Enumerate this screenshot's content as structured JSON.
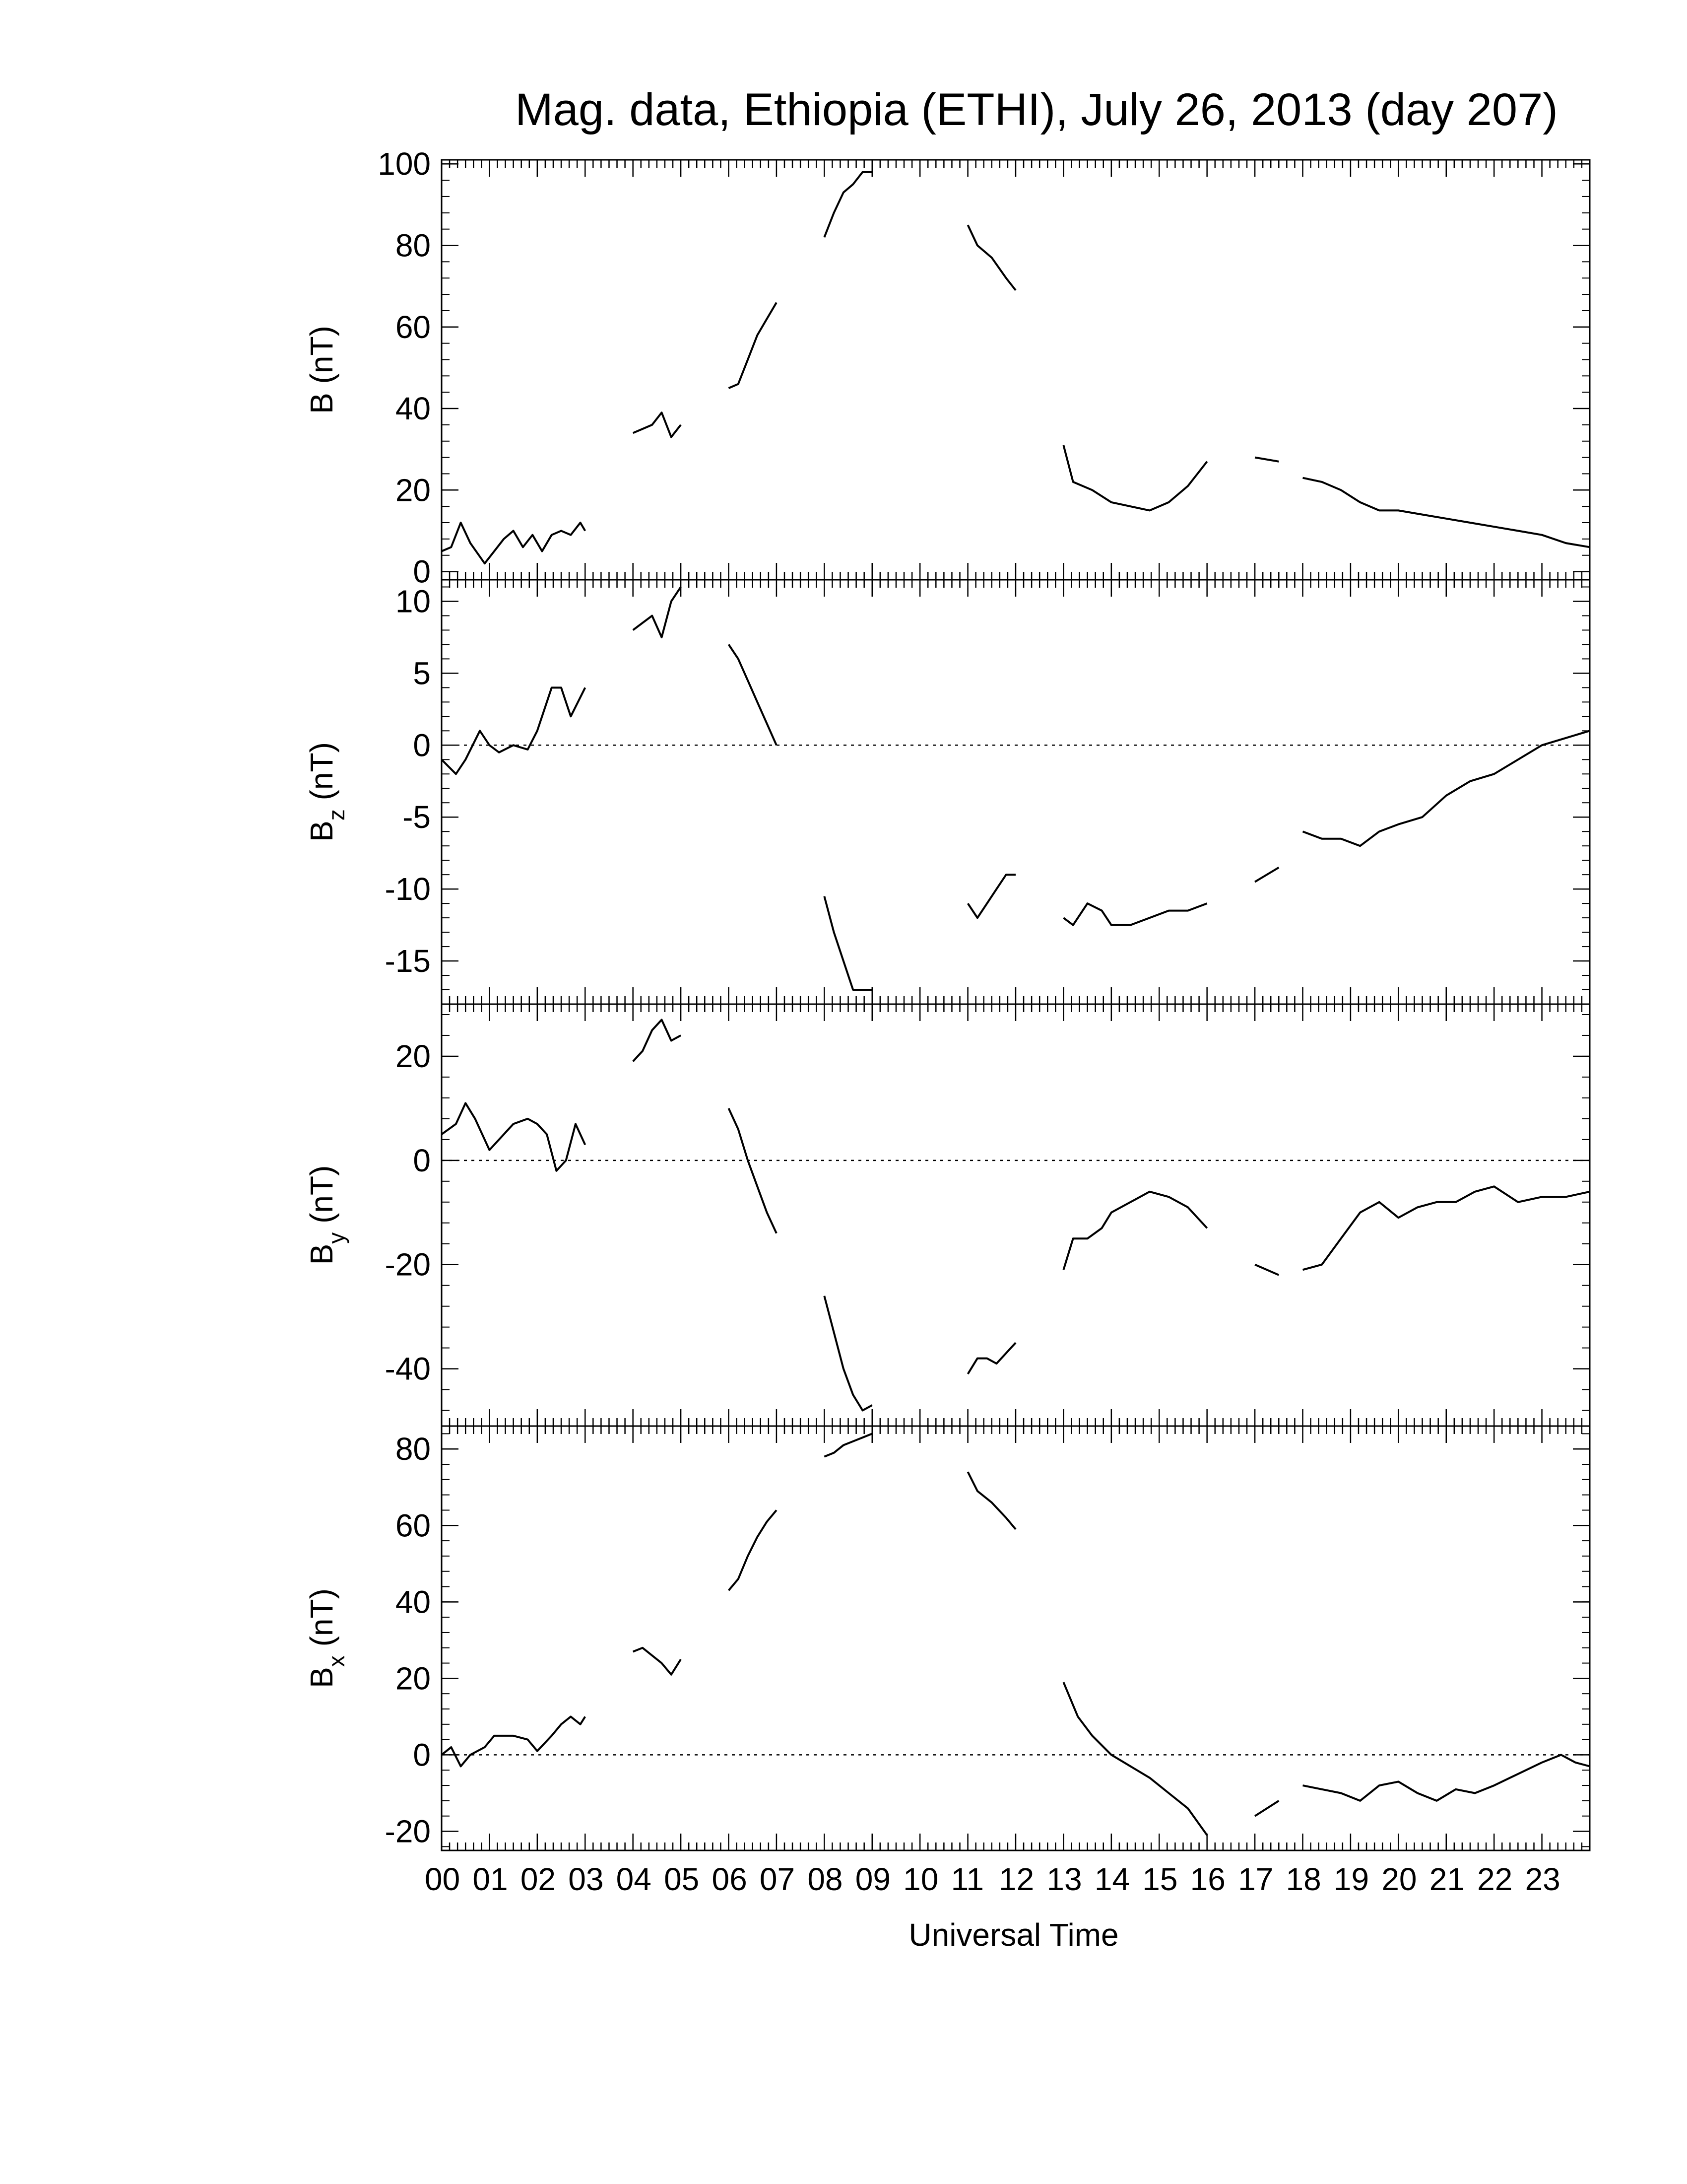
{
  "chart_data": {
    "type": "line",
    "title": "Mag. data, Ethiopia (ETHI), July 26, 2013 (day 207)",
    "xlabel": "Universal Time",
    "xlim": [
      0,
      24
    ],
    "xtick_labels": [
      "00",
      "01",
      "02",
      "03",
      "04",
      "05",
      "06",
      "07",
      "08",
      "09",
      "10",
      "11",
      "12",
      "13",
      "14",
      "15",
      "16",
      "17",
      "18",
      "19",
      "20",
      "21",
      "22",
      "23"
    ],
    "panels": [
      {
        "name": "B",
        "ylabel_main": "B",
        "ylabel_sub": "",
        "ylabel_unit": "(nT)",
        "ylim": [
          -2,
          101
        ],
        "yticks": [
          0,
          20,
          40,
          60,
          80,
          100
        ],
        "zero_line": false,
        "segments": [
          [
            [
              0,
              5
            ],
            [
              0.2,
              6
            ],
            [
              0.4,
              12
            ],
            [
              0.6,
              7
            ],
            [
              0.9,
              2
            ],
            [
              1.1,
              5
            ],
            [
              1.3,
              8
            ],
            [
              1.5,
              10
            ],
            [
              1.7,
              6
            ],
            [
              1.9,
              9
            ],
            [
              2.1,
              5
            ],
            [
              2.3,
              9
            ],
            [
              2.5,
              10
            ],
            [
              2.7,
              9
            ],
            [
              2.9,
              12
            ],
            [
              3.0,
              10
            ]
          ],
          [
            [
              4.0,
              34
            ],
            [
              4.2,
              35
            ],
            [
              4.4,
              36
            ],
            [
              4.6,
              39
            ],
            [
              4.8,
              33
            ],
            [
              5.0,
              36
            ]
          ],
          [
            [
              6.0,
              45
            ],
            [
              6.2,
              46
            ],
            [
              6.4,
              52
            ],
            [
              6.6,
              58
            ],
            [
              6.8,
              62
            ],
            [
              7.0,
              66
            ]
          ],
          [
            [
              8.0,
              82
            ],
            [
              8.2,
              88
            ],
            [
              8.4,
              93
            ],
            [
              8.6,
              95
            ],
            [
              8.8,
              98
            ],
            [
              9.0,
              98
            ]
          ],
          [
            [
              11.0,
              85
            ],
            [
              11.2,
              80
            ],
            [
              11.5,
              77
            ],
            [
              11.8,
              72
            ],
            [
              12.0,
              69
            ]
          ],
          [
            [
              13.0,
              31
            ],
            [
              13.2,
              22
            ],
            [
              13.6,
              20
            ],
            [
              14.0,
              17
            ],
            [
              14.4,
              16
            ],
            [
              14.8,
              15
            ],
            [
              15.2,
              17
            ],
            [
              15.6,
              21
            ],
            [
              16.0,
              27
            ]
          ],
          [
            [
              17.0,
              28
            ],
            [
              17.5,
              27
            ]
          ],
          [
            [
              18.0,
              23
            ],
            [
              18.4,
              22
            ],
            [
              18.8,
              20
            ],
            [
              19.2,
              17
            ],
            [
              19.6,
              15
            ],
            [
              20.0,
              15
            ],
            [
              20.5,
              14
            ],
            [
              21.0,
              13
            ],
            [
              21.5,
              12
            ],
            [
              22.0,
              11
            ],
            [
              22.5,
              10
            ],
            [
              23.0,
              9
            ],
            [
              23.5,
              7
            ],
            [
              24.0,
              6
            ]
          ]
        ]
      },
      {
        "name": "Bz",
        "ylabel_main": "B",
        "ylabel_sub": "z",
        "ylabel_unit": "(nT)",
        "ylim": [
          -18,
          11.5
        ],
        "yticks": [
          10,
          5,
          0,
          -5,
          -10,
          -15
        ],
        "zero_line": true,
        "segments": [
          [
            [
              0,
              -1
            ],
            [
              0.3,
              -2
            ],
            [
              0.5,
              -1
            ],
            [
              0.8,
              1
            ],
            [
              1.0,
              0
            ],
            [
              1.2,
              -0.5
            ],
            [
              1.5,
              0
            ],
            [
              1.8,
              -0.3
            ],
            [
              2.0,
              1
            ],
            [
              2.3,
              4
            ],
            [
              2.5,
              4
            ],
            [
              2.7,
              2
            ],
            [
              2.85,
              3
            ],
            [
              3.0,
              4
            ]
          ],
          [
            [
              4.0,
              8
            ],
            [
              4.2,
              8.5
            ],
            [
              4.4,
              9
            ],
            [
              4.6,
              7.5
            ],
            [
              4.8,
              10
            ],
            [
              5.0,
              11
            ]
          ],
          [
            [
              6.0,
              7
            ],
            [
              6.2,
              6
            ],
            [
              6.4,
              4.5
            ],
            [
              6.6,
              3
            ],
            [
              6.8,
              1.5
            ],
            [
              7.0,
              0
            ]
          ],
          [
            [
              8.0,
              -10.5
            ],
            [
              8.2,
              -13
            ],
            [
              8.4,
              -15
            ],
            [
              8.6,
              -17
            ],
            [
              8.8,
              -17
            ],
            [
              9.0,
              -17
            ]
          ],
          [
            [
              11.0,
              -11
            ],
            [
              11.2,
              -12
            ],
            [
              11.4,
              -11
            ],
            [
              11.6,
              -10
            ],
            [
              11.8,
              -9
            ],
            [
              12.0,
              -9
            ]
          ],
          [
            [
              13.0,
              -12
            ],
            [
              13.2,
              -12.5
            ],
            [
              13.5,
              -11
            ],
            [
              13.8,
              -11.5
            ],
            [
              14.0,
              -12.5
            ],
            [
              14.4,
              -12.5
            ],
            [
              14.8,
              -12
            ],
            [
              15.2,
              -11.5
            ],
            [
              15.6,
              -11.5
            ],
            [
              16.0,
              -11
            ]
          ],
          [
            [
              17.0,
              -9.5
            ],
            [
              17.5,
              -8.5
            ]
          ],
          [
            [
              18.0,
              -6
            ],
            [
              18.4,
              -6.5
            ],
            [
              18.8,
              -6.5
            ],
            [
              19.2,
              -7
            ],
            [
              19.6,
              -6
            ],
            [
              20.0,
              -5.5
            ],
            [
              20.5,
              -5
            ],
            [
              21.0,
              -3.5
            ],
            [
              21.5,
              -2.5
            ],
            [
              22.0,
              -2
            ],
            [
              22.5,
              -1
            ],
            [
              23.0,
              0
            ],
            [
              23.5,
              0.5
            ],
            [
              24.0,
              1
            ]
          ]
        ]
      },
      {
        "name": "By",
        "ylabel_main": "B",
        "ylabel_sub": "y",
        "ylabel_unit": "(nT)",
        "ylim": [
          -51,
          30
        ],
        "yticks": [
          20,
          0,
          -20,
          -40
        ],
        "zero_line": true,
        "segments": [
          [
            [
              0,
              5
            ],
            [
              0.3,
              7
            ],
            [
              0.5,
              11
            ],
            [
              0.7,
              8
            ],
            [
              1.0,
              2
            ],
            [
              1.2,
              4
            ],
            [
              1.5,
              7
            ],
            [
              1.8,
              8
            ],
            [
              2.0,
              7
            ],
            [
              2.2,
              5
            ],
            [
              2.4,
              -2
            ],
            [
              2.6,
              0
            ],
            [
              2.8,
              7
            ],
            [
              3.0,
              3
            ]
          ],
          [
            [
              4.0,
              19
            ],
            [
              4.2,
              21
            ],
            [
              4.4,
              25
            ],
            [
              4.6,
              27
            ],
            [
              4.8,
              23
            ],
            [
              5.0,
              24
            ]
          ],
          [
            [
              6.0,
              10
            ],
            [
              6.2,
              6
            ],
            [
              6.4,
              0
            ],
            [
              6.6,
              -5
            ],
            [
              6.8,
              -10
            ],
            [
              7.0,
              -14
            ]
          ],
          [
            [
              8.0,
              -26
            ],
            [
              8.2,
              -33
            ],
            [
              8.4,
              -40
            ],
            [
              8.6,
              -45
            ],
            [
              8.8,
              -48
            ],
            [
              9.0,
              -47
            ]
          ],
          [
            [
              11.0,
              -41
            ],
            [
              11.2,
              -38
            ],
            [
              11.4,
              -38
            ],
            [
              11.6,
              -39
            ],
            [
              11.8,
              -37
            ],
            [
              12.0,
              -35
            ]
          ],
          [
            [
              13.0,
              -21
            ],
            [
              13.2,
              -15
            ],
            [
              13.5,
              -15
            ],
            [
              13.8,
              -13
            ],
            [
              14.0,
              -10
            ],
            [
              14.4,
              -8
            ],
            [
              14.8,
              -6
            ],
            [
              15.2,
              -7
            ],
            [
              15.6,
              -9
            ],
            [
              16.0,
              -13
            ]
          ],
          [
            [
              17.0,
              -20
            ],
            [
              17.5,
              -22
            ]
          ],
          [
            [
              18.0,
              -21
            ],
            [
              18.4,
              -20
            ],
            [
              18.8,
              -15
            ],
            [
              19.2,
              -10
            ],
            [
              19.6,
              -8
            ],
            [
              20.0,
              -11
            ],
            [
              20.4,
              -9
            ],
            [
              20.8,
              -8
            ],
            [
              21.2,
              -8
            ],
            [
              21.6,
              -6
            ],
            [
              22.0,
              -5
            ],
            [
              22.5,
              -8
            ],
            [
              23.0,
              -7
            ],
            [
              23.5,
              -7
            ],
            [
              24.0,
              -6
            ]
          ]
        ]
      },
      {
        "name": "Bx",
        "ylabel_main": "B",
        "ylabel_sub": "x",
        "ylabel_unit": "(nT)",
        "ylim": [
          -25,
          86
        ],
        "yticks": [
          80,
          60,
          40,
          20,
          0,
          -20
        ],
        "zero_line": true,
        "segments": [
          [
            [
              0,
              0
            ],
            [
              0.2,
              2
            ],
            [
              0.4,
              -3
            ],
            [
              0.6,
              0
            ],
            [
              0.9,
              2
            ],
            [
              1.1,
              5
            ],
            [
              1.5,
              5
            ],
            [
              1.8,
              4
            ],
            [
              2.0,
              1
            ],
            [
              2.3,
              5
            ],
            [
              2.5,
              8
            ],
            [
              2.7,
              10
            ],
            [
              2.9,
              8
            ],
            [
              3.0,
              10
            ]
          ],
          [
            [
              4.0,
              27
            ],
            [
              4.2,
              28
            ],
            [
              4.4,
              26
            ],
            [
              4.6,
              24
            ],
            [
              4.8,
              21
            ],
            [
              5.0,
              25
            ]
          ],
          [
            [
              6.0,
              43
            ],
            [
              6.2,
              46
            ],
            [
              6.4,
              52
            ],
            [
              6.6,
              57
            ],
            [
              6.8,
              61
            ],
            [
              7.0,
              64
            ]
          ],
          [
            [
              8.0,
              78
            ],
            [
              8.2,
              79
            ],
            [
              8.4,
              81
            ],
            [
              8.6,
              82
            ],
            [
              8.8,
              83
            ],
            [
              9.0,
              84
            ]
          ],
          [
            [
              11.0,
              74
            ],
            [
              11.2,
              69
            ],
            [
              11.5,
              66
            ],
            [
              11.8,
              62
            ],
            [
              12.0,
              59
            ]
          ],
          [
            [
              13.0,
              19
            ],
            [
              13.3,
              10
            ],
            [
              13.6,
              5
            ],
            [
              14.0,
              0
            ],
            [
              14.4,
              -3
            ],
            [
              14.8,
              -6
            ],
            [
              15.2,
              -10
            ],
            [
              15.6,
              -14
            ],
            [
              16.0,
              -21
            ]
          ],
          [
            [
              17.0,
              -16
            ],
            [
              17.5,
              -12
            ]
          ],
          [
            [
              18.0,
              -8
            ],
            [
              18.4,
              -9
            ],
            [
              18.8,
              -10
            ],
            [
              19.2,
              -12
            ],
            [
              19.6,
              -8
            ],
            [
              20.0,
              -7
            ],
            [
              20.4,
              -10
            ],
            [
              20.8,
              -12
            ],
            [
              21.2,
              -9
            ],
            [
              21.6,
              -10
            ],
            [
              22.0,
              -8
            ],
            [
              22.5,
              -5
            ],
            [
              23.0,
              -2
            ],
            [
              23.4,
              0
            ],
            [
              23.7,
              -2
            ],
            [
              24.0,
              -3
            ]
          ]
        ]
      }
    ]
  }
}
